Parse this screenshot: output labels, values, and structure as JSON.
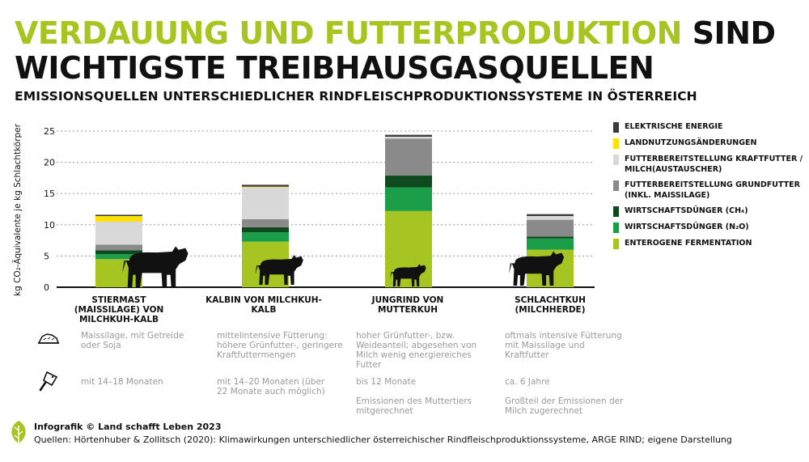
{
  "title": {
    "part1": "VERDAUUNG UND FUTTERPRODUKTION",
    "part2": "SIND",
    "part3": "WICHTIGSTE TREIBHAUSGASQUELLEN"
  },
  "subtitle": "EMISSIONSQUELLEN UNTERSCHIEDLICHER RINDFLEISCHPRODUKTIONSSYSTEME IN ÖSTERREICH",
  "colors": {
    "title_green": "#a6c520",
    "enterogene": "#a6c520",
    "n2o": "#1a9e4a",
    "ch4": "#0f4a1e",
    "grundfutter": "#8a8a8a",
    "kraftfutter": "#d8d8d8",
    "landnutzung": "#ffe000",
    "energie": "#3a3a3a"
  },
  "chart_data": {
    "type": "bar",
    "stacked": true,
    "categories": [
      "STIERMAST (MAISSILAGE) VON MILCHKUH-KALB",
      "KALBIN VON MILCHKUH-KALB",
      "JUNGRIND VON MUTTERKUH",
      "SCHLACHTKUH (MILCHHERDE)"
    ],
    "ylabel": "kg CO₂-Äquivalente je kg Schlachtkörper",
    "ylim": [
      0,
      25
    ],
    "yticks": [
      0,
      5,
      10,
      15,
      20,
      25
    ],
    "grid": "horizontal-dotted",
    "legend_position": "right",
    "series": [
      {
        "name": "ENTEROGENE FERMENTATION",
        "color": "#a6c520",
        "values": [
          4.5,
          7.3,
          12.2,
          6.0
        ]
      },
      {
        "name": "WIRTSCHAFTSDÜNGER (N₂O)",
        "color": "#1a9e4a",
        "values": [
          0.8,
          1.5,
          3.8,
          1.8
        ]
      },
      {
        "name": "WIRTSCHAFTSDÜNGER (CH₄)",
        "color": "#0f4a1e",
        "values": [
          0.6,
          0.8,
          1.9,
          0.3
        ]
      },
      {
        "name": "FUTTERBEREITSTELLUNG GRUNDFUTTER (INKL. MAISSILAGE)",
        "color": "#8a8a8a",
        "values": [
          0.9,
          1.3,
          5.9,
          2.7
        ]
      },
      {
        "name": "FUTTERBEREITSTELLUNG KRAFTFUTTER / MILCH(AUSTAUSCHER)",
        "color": "#d8d8d8",
        "values": [
          3.7,
          5.1,
          0.3,
          0.6
        ]
      },
      {
        "name": "LANDNUTZUNGSÄNDERUNGEN",
        "color": "#ffe000",
        "values": [
          0.9,
          0.1,
          0.0,
          0.0
        ]
      },
      {
        "name": "ELEKTRISCHE ENERGIE",
        "color": "#3a3a3a",
        "values": [
          0.2,
          0.3,
          0.3,
          0.3
        ]
      }
    ]
  },
  "legend": [
    {
      "label": "ELEKTRISCHE ENERGIE",
      "color": "#3a3a3a"
    },
    {
      "label": "LANDNUTZUNGSÄNDERUNGEN",
      "color": "#ffe000"
    },
    {
      "label": "FUTTERBEREITSTELLUNG KRAFTFUTTER / MILCH(AUSTAUSCHER)",
      "color": "#d8d8d8"
    },
    {
      "label": "FUTTERBEREITSTELLUNG GRUNDFUTTER (INKL. MAISSILAGE)",
      "color": "#8a8a8a"
    },
    {
      "label": "WIRTSCHAFTSDÜNGER (CH₄)",
      "color": "#0f4a1e"
    },
    {
      "label": "WIRTSCHAFTSDÜNGER (N₂O)",
      "color": "#1a9e4a"
    },
    {
      "label": "ENTEROGENE FERMENTATION",
      "color": "#a6c520"
    }
  ],
  "categories": [
    {
      "label": "STIERMAST (MAISSILAGE) VON MILCHKUH-KALB",
      "feed": "Maissilage, mit Getreide oder Soja",
      "age": "mit 14–18 Monaten",
      "extra": ""
    },
    {
      "label": "KALBIN VON MILCHKUH-KALB",
      "feed": "mittelintensive Fütterung: höhere Grünfutter-, geringere Kraftfuttermengen",
      "age": "mit 14–20 Monaten (über 22 Monate auch möglich)",
      "extra": ""
    },
    {
      "label": "JUNGRIND VON MUTTERKUH",
      "feed": "hoher Grünfutter-, bzw. Weideanteil; abgesehen von Milch wenig energiereiches Futter",
      "age": "bis 12 Monate",
      "extra": "Emissionen des Muttertiers mitgerechnet"
    },
    {
      "label": "SCHLACHTKUH (MILCHHERDE)",
      "feed": "oftmals intensive Fütterung mit Maissilage und Kraftfutter",
      "age": "ca. 6 Jahre",
      "extra": "Großteil der Emissionen der Milch zugerechnet"
    }
  ],
  "icons": {
    "feed_row": "silage-icon",
    "age_row": "cleaver-icon",
    "logo": "leaf-logo-icon",
    "animals": [
      "bull-icon",
      "heifer-icon",
      "calf-icon",
      "cow-icon"
    ]
  },
  "footer": {
    "credit": "Infografik © Land schafft Leben 2023",
    "sources": "Quellen: Hörtenhuber & Zollitsch (2020): Klimawirkungen unterschiedlicher österreichischer Rindfleischproduktionssysteme, ARGE RIND; eigene Darstellung"
  }
}
